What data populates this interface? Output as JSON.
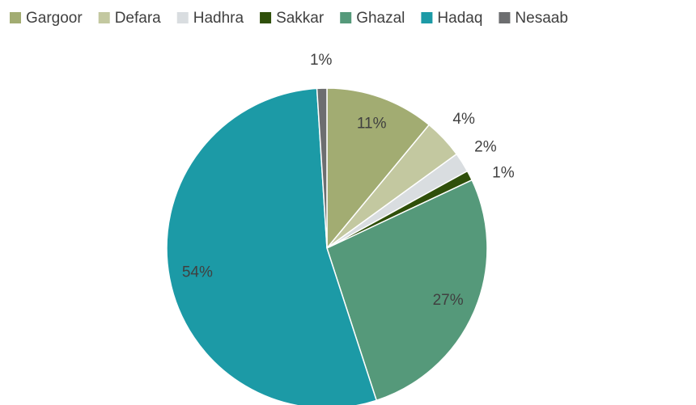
{
  "chart_data": {
    "type": "pie",
    "categories": [
      "Gargoor",
      "Defara",
      "Hadhra",
      "Sakkar",
      "Ghazal",
      "Hadaq",
      "Nesaab"
    ],
    "values": [
      11,
      4,
      2,
      1,
      27,
      54,
      1
    ],
    "value_labels": [
      "11%",
      "4%",
      "2%",
      "1%",
      "27%",
      "54%",
      "1%"
    ],
    "colors": [
      "#a2ac72",
      "#c3c8a0",
      "#d9dde0",
      "#2f4f0a",
      "#55997a",
      "#1c9aa6",
      "#6d6e70"
    ],
    "legend": "top"
  }
}
